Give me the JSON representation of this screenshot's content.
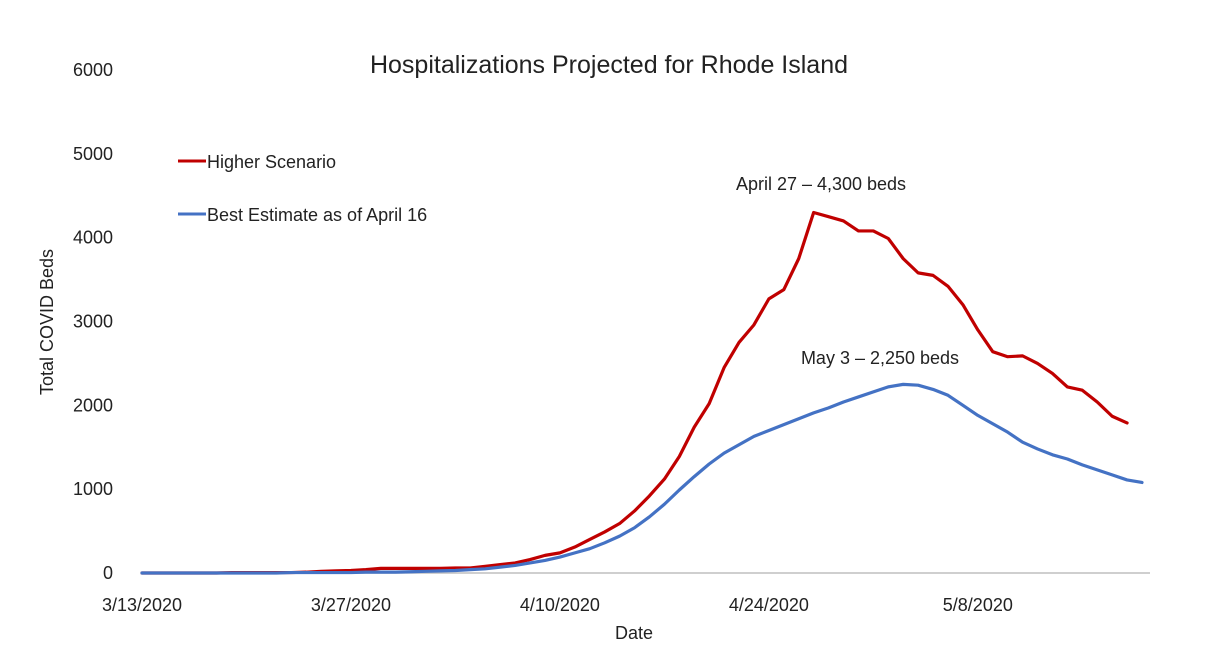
{
  "chart_data": {
    "type": "line",
    "title": "Hospitalizations Projected for Rhode Island",
    "xlabel": "Date",
    "ylabel": "Total COVID Beds",
    "ylim": [
      0,
      6000
    ],
    "yticks": [
      0,
      1000,
      2000,
      3000,
      4000,
      5000,
      6000
    ],
    "xticks": [
      "3/13/2020",
      "3/27/2020",
      "4/10/2020",
      "4/24/2020",
      "5/8/2020"
    ],
    "xlim": [
      "2020-03-13",
      "2020-05-19"
    ],
    "grid": false,
    "legend_position": "top-left",
    "series": [
      {
        "name": "Higher Scenario",
        "color": "#c00000",
        "points": [
          [
            "2020-03-13",
            0
          ],
          [
            "2020-03-14",
            0
          ],
          [
            "2020-03-15",
            0
          ],
          [
            "2020-03-16",
            0
          ],
          [
            "2020-03-17",
            0
          ],
          [
            "2020-03-18",
            0
          ],
          [
            "2020-03-19",
            5
          ],
          [
            "2020-03-20",
            5
          ],
          [
            "2020-03-21",
            5
          ],
          [
            "2020-03-22",
            5
          ],
          [
            "2020-03-23",
            5
          ],
          [
            "2020-03-24",
            10
          ],
          [
            "2020-03-25",
            20
          ],
          [
            "2020-03-26",
            25
          ],
          [
            "2020-03-27",
            30
          ],
          [
            "2020-03-28",
            40
          ],
          [
            "2020-03-29",
            55
          ],
          [
            "2020-03-30",
            55
          ],
          [
            "2020-03-31",
            55
          ],
          [
            "2020-04-01",
            55
          ],
          [
            "2020-04-02",
            55
          ],
          [
            "2020-04-03",
            60
          ],
          [
            "2020-04-04",
            60
          ],
          [
            "2020-04-05",
            80
          ],
          [
            "2020-04-06",
            100
          ],
          [
            "2020-04-07",
            120
          ],
          [
            "2020-04-08",
            160
          ],
          [
            "2020-04-09",
            210
          ],
          [
            "2020-04-10",
            240
          ],
          [
            "2020-04-11",
            310
          ],
          [
            "2020-04-12",
            400
          ],
          [
            "2020-04-13",
            490
          ],
          [
            "2020-04-14",
            590
          ],
          [
            "2020-04-15",
            740
          ],
          [
            "2020-04-16",
            920
          ],
          [
            "2020-04-17",
            1120
          ],
          [
            "2020-04-18",
            1390
          ],
          [
            "2020-04-19",
            1740
          ],
          [
            "2020-04-20",
            2020
          ],
          [
            "2020-04-21",
            2450
          ],
          [
            "2020-04-22",
            2750
          ],
          [
            "2020-04-23",
            2960
          ],
          [
            "2020-04-24",
            3270
          ],
          [
            "2020-04-25",
            3380
          ],
          [
            "2020-04-26",
            3750
          ],
          [
            "2020-04-27",
            4300
          ],
          [
            "2020-04-28",
            4250
          ],
          [
            "2020-04-29",
            4200
          ],
          [
            "2020-04-30",
            4080
          ],
          [
            "2020-05-01",
            4080
          ],
          [
            "2020-05-02",
            3990
          ],
          [
            "2020-05-03",
            3750
          ],
          [
            "2020-05-04",
            3580
          ],
          [
            "2020-05-05",
            3550
          ],
          [
            "2020-05-06",
            3420
          ],
          [
            "2020-05-07",
            3200
          ],
          [
            "2020-05-08",
            2900
          ],
          [
            "2020-05-09",
            2640
          ],
          [
            "2020-05-10",
            2580
          ],
          [
            "2020-05-11",
            2590
          ],
          [
            "2020-05-12",
            2500
          ],
          [
            "2020-05-13",
            2380
          ],
          [
            "2020-05-14",
            2220
          ],
          [
            "2020-05-15",
            2180
          ],
          [
            "2020-05-16",
            2040
          ],
          [
            "2020-05-17",
            1870
          ],
          [
            "2020-05-18",
            1790
          ]
        ]
      },
      {
        "name": "Best Estimate as of April 16",
        "color": "#4472c4",
        "points": [
          [
            "2020-03-13",
            0
          ],
          [
            "2020-03-14",
            0
          ],
          [
            "2020-03-15",
            0
          ],
          [
            "2020-03-16",
            0
          ],
          [
            "2020-03-17",
            0
          ],
          [
            "2020-03-18",
            0
          ],
          [
            "2020-03-19",
            0
          ],
          [
            "2020-03-20",
            0
          ],
          [
            "2020-03-21",
            0
          ],
          [
            "2020-03-22",
            0
          ],
          [
            "2020-03-23",
            5
          ],
          [
            "2020-03-24",
            5
          ],
          [
            "2020-03-25",
            5
          ],
          [
            "2020-03-26",
            5
          ],
          [
            "2020-03-27",
            5
          ],
          [
            "2020-03-28",
            10
          ],
          [
            "2020-03-29",
            10
          ],
          [
            "2020-03-30",
            10
          ],
          [
            "2020-03-31",
            15
          ],
          [
            "2020-04-01",
            20
          ],
          [
            "2020-04-02",
            25
          ],
          [
            "2020-04-03",
            30
          ],
          [
            "2020-04-04",
            40
          ],
          [
            "2020-04-05",
            50
          ],
          [
            "2020-04-06",
            70
          ],
          [
            "2020-04-07",
            90
          ],
          [
            "2020-04-08",
            120
          ],
          [
            "2020-04-09",
            150
          ],
          [
            "2020-04-10",
            190
          ],
          [
            "2020-04-11",
            240
          ],
          [
            "2020-04-12",
            290
          ],
          [
            "2020-04-13",
            360
          ],
          [
            "2020-04-14",
            440
          ],
          [
            "2020-04-15",
            540
          ],
          [
            "2020-04-16",
            670
          ],
          [
            "2020-04-17",
            820
          ],
          [
            "2020-04-18",
            990
          ],
          [
            "2020-04-19",
            1150
          ],
          [
            "2020-04-20",
            1300
          ],
          [
            "2020-04-21",
            1430
          ],
          [
            "2020-04-22",
            1530
          ],
          [
            "2020-04-23",
            1630
          ],
          [
            "2020-04-24",
            1700
          ],
          [
            "2020-04-25",
            1770
          ],
          [
            "2020-04-26",
            1840
          ],
          [
            "2020-04-27",
            1910
          ],
          [
            "2020-04-28",
            1970
          ],
          [
            "2020-04-29",
            2040
          ],
          [
            "2020-04-30",
            2100
          ],
          [
            "2020-05-01",
            2160
          ],
          [
            "2020-05-02",
            2220
          ],
          [
            "2020-05-03",
            2250
          ],
          [
            "2020-05-04",
            2240
          ],
          [
            "2020-05-05",
            2190
          ],
          [
            "2020-05-06",
            2120
          ],
          [
            "2020-05-07",
            2000
          ],
          [
            "2020-05-08",
            1880
          ],
          [
            "2020-05-09",
            1780
          ],
          [
            "2020-05-10",
            1680
          ],
          [
            "2020-05-11",
            1560
          ],
          [
            "2020-05-12",
            1480
          ],
          [
            "2020-05-13",
            1410
          ],
          [
            "2020-05-14",
            1360
          ],
          [
            "2020-05-15",
            1290
          ],
          [
            "2020-05-16",
            1230
          ],
          [
            "2020-05-17",
            1170
          ],
          [
            "2020-05-18",
            1110
          ],
          [
            "2020-05-19",
            1080
          ]
        ]
      }
    ],
    "annotations": [
      {
        "text": "April 27 – 4,300 beds",
        "x": "2020-04-27",
        "y": 4300
      },
      {
        "text": "May 3 – 2,250 beds",
        "x": "2020-05-03",
        "y": 2250
      }
    ]
  }
}
